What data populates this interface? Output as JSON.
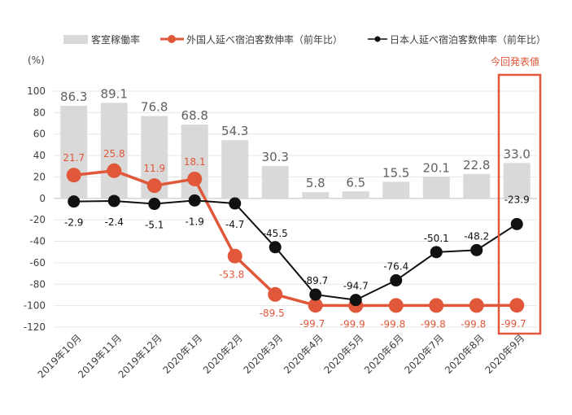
{
  "chart_data": {
    "type": "bar",
    "unit_label": "(%)",
    "categories": [
      "2019年10月",
      "2019年11月",
      "2019年12月",
      "2020年1月",
      "2020年2月",
      "2020年3月",
      "2020年4月",
      "2020年5月",
      "2020年6月",
      "2020年7月",
      "2020年8月",
      "2020年9月"
    ],
    "ylim": [
      -120,
      100
    ],
    "yticks": [
      100,
      80,
      60,
      40,
      20,
      0,
      -20,
      -40,
      -60,
      -80,
      -100,
      -120
    ],
    "grid": true,
    "legend_position": "top",
    "series": [
      {
        "name": "客室稼働率",
        "type": "bar",
        "color": "#d9d9d9",
        "values": [
          86.3,
          89.1,
          76.8,
          68.8,
          54.3,
          30.3,
          5.8,
          6.5,
          15.5,
          20.1,
          22.8,
          33.0
        ],
        "labels": [
          "86.3",
          "89.1",
          "76.8",
          "68.8",
          "54.3",
          "30.3",
          "5.8",
          "6.5",
          "15.5",
          "20.1",
          "22.8",
          "33.0"
        ]
      },
      {
        "name": "外国人延べ宿泊客数伸率（前年比）",
        "type": "line",
        "color": "#e0573a",
        "values": [
          21.7,
          25.8,
          11.9,
          18.1,
          -53.8,
          -89.5,
          -99.7,
          -99.9,
          -99.8,
          -99.8,
          -99.8,
          -99.7
        ],
        "labels": [
          "21.7",
          "25.8",
          "11.9",
          "18.1",
          "-53.8",
          "-89.5",
          "-99.7",
          "-99.9",
          "-99.8",
          "-99.8",
          "-99.8",
          "-99.7"
        ]
      },
      {
        "name": "日本人延べ宿泊客数伸率（前年比）",
        "type": "line",
        "color": "#111111",
        "values": [
          -2.9,
          -2.4,
          -5.1,
          -1.9,
          -4.7,
          -45.5,
          -89.7,
          -94.7,
          -76.4,
          -50.1,
          -48.2,
          -23.9
        ],
        "labels": [
          "-2.9",
          "-2.4",
          "-5.1",
          "-1.9",
          "-4.7",
          "-45.5",
          "-89.7",
          "-94.7",
          "-76.4",
          "-50.1",
          "-48.2",
          "-23.9"
        ]
      }
    ],
    "annotations": [
      {
        "text": "今回発表値",
        "color": "#e0573a"
      }
    ]
  }
}
